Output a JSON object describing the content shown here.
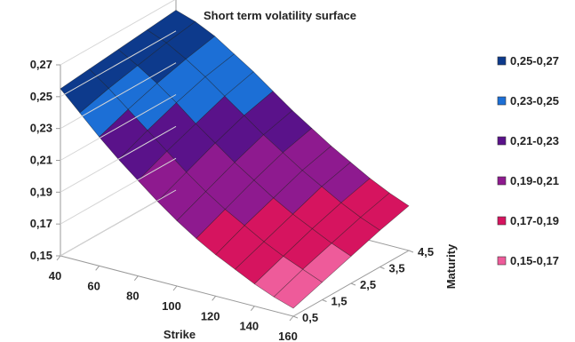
{
  "chart_data": {
    "type": "surface",
    "title": "Short term volatility surface",
    "xlabel": "Strike",
    "zlabel": "Maturity",
    "x_ticks": [
      "40",
      "60",
      "80",
      "100",
      "120",
      "140",
      "160"
    ],
    "z_ticks": [
      "0,5",
      "1,5",
      "2,5",
      "3,5",
      "4,5"
    ],
    "y_ticks": [
      "0,15",
      "0,17",
      "0,19",
      "0,21",
      "0,23",
      "0,25",
      "0,27"
    ],
    "xlim": [
      40,
      160
    ],
    "zlim": [
      0.5,
      4.5
    ],
    "ylim": [
      0.15,
      0.27
    ],
    "legend_position": "right",
    "strikes": [
      40,
      50,
      60,
      70,
      80,
      90,
      100,
      110,
      120,
      130,
      140,
      150,
      160
    ],
    "maturities": [
      0.5,
      1.5,
      2.5,
      3.5,
      4.5
    ],
    "values": [
      [
        0.255,
        0.257,
        0.259,
        0.261,
        0.263
      ],
      [
        0.243,
        0.248,
        0.252,
        0.256,
        0.259
      ],
      [
        0.231,
        0.238,
        0.244,
        0.249,
        0.253
      ],
      [
        0.22,
        0.228,
        0.235,
        0.241,
        0.245
      ],
      [
        0.21,
        0.218,
        0.225,
        0.232,
        0.237
      ],
      [
        0.2,
        0.208,
        0.216,
        0.223,
        0.228
      ],
      [
        0.191,
        0.199,
        0.207,
        0.214,
        0.219
      ],
      [
        0.183,
        0.191,
        0.199,
        0.206,
        0.211
      ],
      [
        0.176,
        0.184,
        0.191,
        0.198,
        0.203
      ],
      [
        0.17,
        0.177,
        0.184,
        0.191,
        0.196
      ],
      [
        0.164,
        0.171,
        0.178,
        0.184,
        0.189
      ],
      [
        0.159,
        0.166,
        0.172,
        0.178,
        0.183
      ],
      [
        0.155,
        0.161,
        0.167,
        0.173,
        0.178
      ]
    ],
    "legend": [
      {
        "label": "0,25-0,27",
        "min": 0.25,
        "max": 0.27,
        "color": "#0d3a8c"
      },
      {
        "label": "0,23-0,25",
        "min": 0.23,
        "max": 0.25,
        "color": "#1c6fd6"
      },
      {
        "label": "0,21-0,23",
        "min": 0.21,
        "max": 0.23,
        "color": "#5a128a"
      },
      {
        "label": "0,19-0,21",
        "min": 0.19,
        "max": 0.21,
        "color": "#8e1a8f"
      },
      {
        "label": "0,17-0,19",
        "min": 0.17,
        "max": 0.19,
        "color": "#d6145f"
      },
      {
        "label": "0,15-0,17",
        "min": 0.15,
        "max": 0.17,
        "color": "#ee5b9a"
      }
    ]
  }
}
